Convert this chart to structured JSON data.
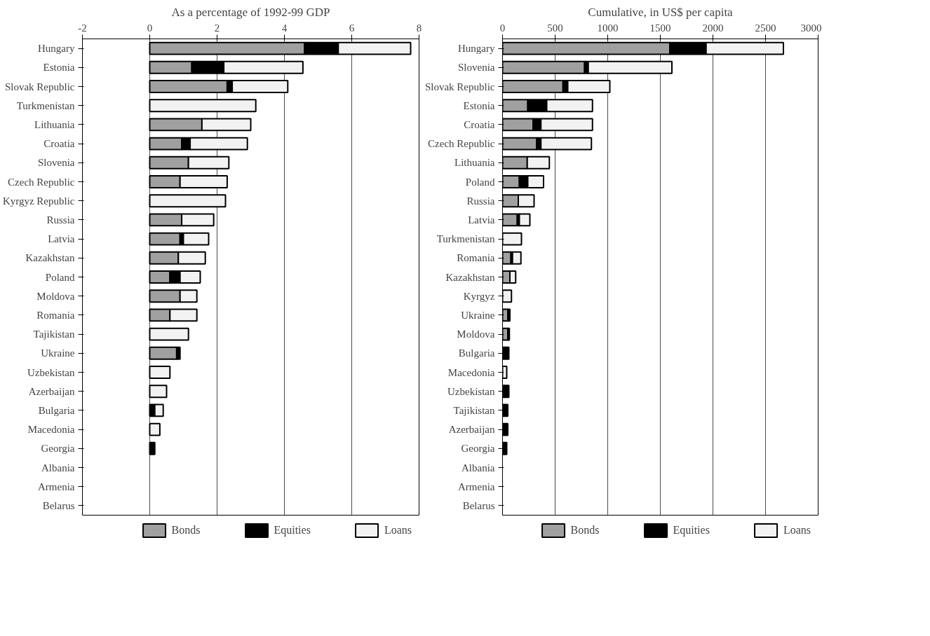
{
  "chart_data": [
    {
      "type": "bar",
      "orientation": "horizontal",
      "stacked": true,
      "title": "As a percentage of 1992-99 GDP",
      "categories": [
        "Hungary",
        "Estonia",
        "Slovak Republic",
        "Turkmenistan",
        "Lithuania",
        "Croatia",
        "Slovenia",
        "Czech Republic",
        "Kyrgyz Republic",
        "Russia",
        "Latvia",
        "Kazakhstan",
        "Poland",
        "Moldova",
        "Romania",
        "Tajikistan",
        "Ukraine",
        "Uzbekistan",
        "Azerbaijan",
        "Bulgaria",
        "Macedonia",
        "Georgia",
        "Albania",
        "Armenia",
        "Belarus"
      ],
      "series": [
        {
          "name": "Bonds",
          "color": "#a0a0a0",
          "values": [
            4.6,
            1.25,
            2.3,
            0,
            1.55,
            0.95,
            1.15,
            0.9,
            0,
            0.95,
            0.9,
            0.85,
            0.6,
            0.9,
            0.6,
            0,
            0.8,
            0,
            0,
            0,
            0,
            0,
            0,
            0,
            0
          ]
        },
        {
          "name": "Equities",
          "color": "#000000",
          "values": [
            1.0,
            0.95,
            0.15,
            0,
            0,
            0.25,
            0,
            0,
            0,
            0,
            0.1,
            0,
            0.3,
            0,
            0,
            0,
            0.1,
            0,
            0,
            0.15,
            0,
            0.15,
            0,
            0,
            0
          ]
        },
        {
          "name": "Loans",
          "color": "#f2f2f2",
          "values": [
            2.15,
            2.35,
            1.65,
            3.15,
            1.45,
            1.7,
            1.2,
            1.4,
            2.25,
            0.95,
            0.75,
            0.8,
            0.6,
            0.5,
            0.8,
            1.15,
            0,
            0.6,
            0.5,
            0.25,
            0.3,
            0,
            0,
            0,
            0
          ]
        }
      ],
      "xlim": [
        -2,
        8
      ],
      "xticks": [
        -2,
        0,
        2,
        4,
        6,
        8
      ],
      "grid": "x",
      "legend": "bottom"
    },
    {
      "type": "bar",
      "orientation": "horizontal",
      "stacked": true,
      "title": "Cumulative, in US$ per capita",
      "categories": [
        "Hungary",
        "Slovenia",
        "Slovak Republic",
        "Estonia",
        "Croatia",
        "Czech Republic",
        "Lithuania",
        "Poland",
        "Russia",
        "Latvia",
        "Turkmenistan",
        "Romania",
        "Kazakhstan",
        "Kyrgyz",
        "Ukraine",
        "Moldova",
        "Bulgaria",
        "Macedonia",
        "Uzbekistan",
        "Tajikistan",
        "Azerbaijan",
        "Georgia",
        "Albania",
        "Armenia",
        "Belarus"
      ],
      "series": [
        {
          "name": "Bonds",
          "color": "#a0a0a0",
          "values": [
            1590,
            780,
            575,
            240,
            290,
            325,
            235,
            160,
            150,
            140,
            0,
            80,
            70,
            0,
            50,
            50,
            0,
            0,
            0,
            0,
            0,
            0,
            0,
            0,
            0
          ]
        },
        {
          "name": "Equities",
          "color": "#000000",
          "values": [
            345,
            35,
            45,
            180,
            75,
            40,
            0,
            80,
            0,
            20,
            0,
            15,
            null,
            0,
            20,
            15,
            60,
            null,
            60,
            50,
            50,
            40,
            0,
            0,
            0
          ]
        },
        {
          "name": "Loans",
          "color": "#f2f2f2",
          "values": [
            735,
            795,
            400,
            435,
            490,
            480,
            210,
            150,
            150,
            100,
            180,
            80,
            55,
            85,
            0,
            0,
            0,
            40,
            0,
            0,
            0,
            0,
            0,
            0,
            0
          ]
        }
      ],
      "xlim": [
        0,
        3000
      ],
      "xticks": [
        0,
        500,
        1000,
        1500,
        2000,
        2500,
        3000
      ],
      "grid": "x",
      "legend": "bottom"
    }
  ]
}
